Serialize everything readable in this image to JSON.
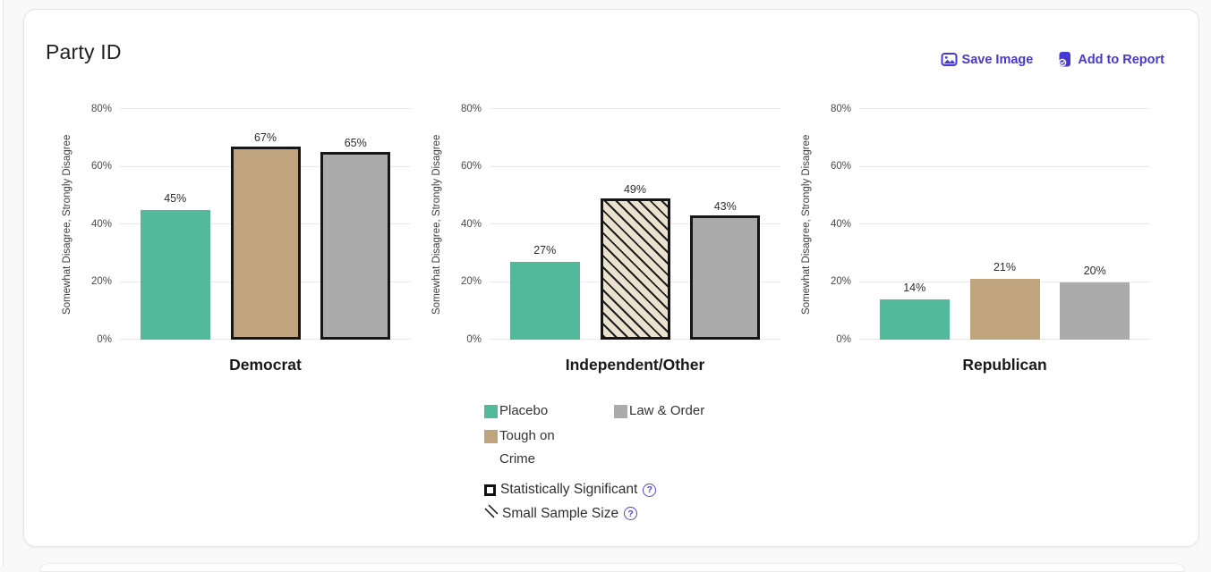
{
  "card": {
    "title": "Party ID"
  },
  "toolbar": {
    "save_image": "Save Image",
    "add_to_report": "Add to Report"
  },
  "colors": {
    "accent": "#4638d2",
    "help_icon": "#4f49d8",
    "significant_border": "#161616",
    "hatch_background": "#eae1cf",
    "hatch_line": "#1d1d1d",
    "placebo": "#52b99a",
    "tough_on_crime": "#c0a47e",
    "law_and_order": "#ababab"
  },
  "chart_data": {
    "type": "bar",
    "title": "Party ID",
    "ylabel": "Somewhat Disagree, Strongly Disagree",
    "xlabel": "",
    "ylim": [
      0,
      80
    ],
    "grid": true,
    "legend_position": "bottom",
    "yticks": [
      0,
      20,
      40,
      60,
      80
    ],
    "ytick_labels": [
      "0%",
      "20%",
      "40%",
      "60%",
      "80%"
    ],
    "series": [
      "Placebo",
      "Tough on Crime",
      "Law & Order"
    ],
    "groups": [
      {
        "title": "Democrat",
        "bars": [
          {
            "series": "Placebo",
            "value": 45,
            "label": "45%",
            "significant": false,
            "small_sample": false
          },
          {
            "series": "Tough on Crime",
            "value": 67,
            "label": "67%",
            "significant": true,
            "small_sample": false
          },
          {
            "series": "Law & Order",
            "value": 65,
            "label": "65%",
            "significant": true,
            "small_sample": false
          }
        ]
      },
      {
        "title": "Independent/Other",
        "bars": [
          {
            "series": "Placebo",
            "value": 27,
            "label": "27%",
            "significant": false,
            "small_sample": false
          },
          {
            "series": "Tough on Crime",
            "value": 49,
            "label": "49%",
            "significant": true,
            "small_sample": true
          },
          {
            "series": "Law & Order",
            "value": 43,
            "label": "43%",
            "significant": true,
            "small_sample": false
          }
        ]
      },
      {
        "title": "Republican",
        "bars": [
          {
            "series": "Placebo",
            "value": 14,
            "label": "14%",
            "significant": false,
            "small_sample": false
          },
          {
            "series": "Tough on Crime",
            "value": 21,
            "label": "21%",
            "significant": false,
            "small_sample": false
          },
          {
            "series": "Law & Order",
            "value": 20,
            "label": "20%",
            "significant": false,
            "small_sample": false
          }
        ]
      }
    ]
  },
  "legend": {
    "items": [
      {
        "label": "Placebo",
        "color": "#52b99a"
      },
      {
        "label": "Tough on Crime",
        "color": "#c0a47e"
      },
      {
        "label": "Law & Order",
        "color": "#ababab"
      }
    ],
    "significant": "Statistically Significant",
    "small_sample": "Small Sample Size",
    "help_glyph": "?"
  }
}
